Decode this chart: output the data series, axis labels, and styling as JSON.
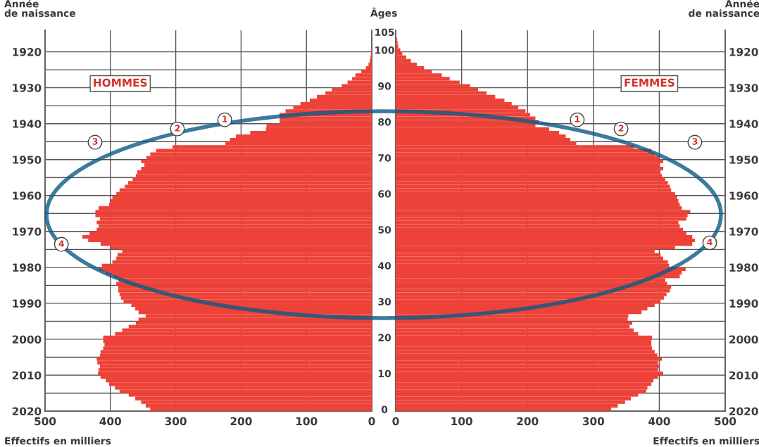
{
  "chart_data": [
    {
      "type": "bar",
      "orientation": "horizontal",
      "title": "HOMMES",
      "xlabel": "Effectifs en milliers",
      "ylabel": "Âges",
      "y2label": "Année\nde naissance",
      "color": "#ee4238",
      "grid": true,
      "x": [
        0,
        1,
        2,
        3,
        4,
        5,
        6,
        7,
        8,
        9,
        10,
        11,
        12,
        13,
        14,
        15,
        16,
        17,
        18,
        19,
        20,
        21,
        22,
        23,
        24,
        25,
        26,
        27,
        28,
        29,
        30,
        31,
        32,
        33,
        34,
        35,
        36,
        37,
        38,
        39,
        40,
        41,
        42,
        43,
        44,
        45,
        46,
        47,
        48,
        49,
        50,
        51,
        52,
        53,
        54,
        55,
        56,
        57,
        58,
        59,
        60,
        61,
        62,
        63,
        64,
        65,
        66,
        67,
        68,
        69,
        70,
        71,
        72,
        73,
        74,
        75,
        76,
        77,
        78,
        79,
        80,
        81,
        82,
        83,
        84,
        85,
        86,
        87,
        88,
        89,
        90,
        91,
        92,
        93,
        94,
        95,
        96,
        97,
        98,
        99,
        100,
        101,
        102,
        103,
        104,
        105
      ],
      "values": [
        339,
        346,
        353,
        362,
        372,
        386,
        393,
        402,
        407,
        415,
        419,
        418,
        416,
        420,
        421,
        416,
        415,
        411,
        409,
        411,
        411,
        393,
        382,
        372,
        361,
        357,
        346,
        357,
        362,
        368,
        380,
        384,
        386,
        388,
        388,
        391,
        387,
        395,
        407,
        418,
        413,
        397,
        391,
        389,
        382,
        400,
        415,
        434,
        443,
        432,
        421,
        418,
        421,
        416,
        423,
        423,
        418,
        402,
        400,
        397,
        391,
        386,
        378,
        373,
        366,
        361,
        359,
        353,
        348,
        353,
        345,
        339,
        330,
        305,
        224,
        217,
        208,
        186,
        162,
        161,
        141,
        141,
        141,
        132,
        120,
        109,
        95,
        84,
        71,
        61,
        46,
        37,
        30,
        25,
        16,
        9,
        5,
        3,
        2,
        1,
        1,
        0,
        0,
        0,
        0,
        0
      ],
      "xlim": [
        500,
        0
      ],
      "xticks": [
        500,
        400,
        300,
        200,
        100,
        0
      ],
      "ylim": [
        -0.5,
        105.5
      ],
      "yticks": [
        0,
        10,
        20,
        30,
        40,
        50,
        60,
        70,
        80,
        90,
        100,
        105
      ],
      "y2lim": [
        2020,
        1914
      ],
      "y2ticks": [
        1920,
        {
          "value": 1925,
          "label": null
        },
        1930,
        {
          "value": 1935,
          "label": null
        },
        1940,
        {
          "value": 1945,
          "label": null
        },
        1950,
        {
          "value": 1955,
          "label": null
        },
        1960,
        {
          "value": 1965,
          "label": null
        },
        1970,
        {
          "value": 1975,
          "label": null
        },
        1980,
        {
          "value": 1985,
          "label": null
        },
        1990,
        {
          "value": 1995,
          "label": null
        },
        2000,
        {
          "value": 2005,
          "label": null
        },
        2010,
        {
          "value": 2015,
          "label": null
        },
        2020
      ],
      "annotations": [
        "1",
        "2",
        "3",
        "4"
      ]
    },
    {
      "type": "bar",
      "orientation": "horizontal",
      "title": "FEMMES",
      "xlabel": "Effectifs en milliers",
      "y2label": "Année\nde naissance",
      "color": "#ee4238",
      "grid": true,
      "x": [
        0,
        1,
        2,
        3,
        4,
        5,
        6,
        7,
        8,
        9,
        10,
        11,
        12,
        13,
        14,
        15,
        16,
        17,
        18,
        19,
        20,
        21,
        22,
        23,
        24,
        25,
        26,
        27,
        28,
        29,
        30,
        31,
        32,
        33,
        34,
        35,
        36,
        37,
        38,
        39,
        40,
        41,
        42,
        43,
        44,
        45,
        46,
        47,
        48,
        49,
        50,
        51,
        52,
        53,
        54,
        55,
        56,
        57,
        58,
        59,
        60,
        61,
        62,
        63,
        64,
        65,
        66,
        67,
        68,
        69,
        70,
        71,
        72,
        73,
        74,
        75,
        76,
        77,
        78,
        79,
        80,
        81,
        82,
        83,
        84,
        85,
        86,
        87,
        88,
        89,
        90,
        91,
        92,
        93,
        94,
        95,
        96,
        97,
        98,
        99,
        100,
        101,
        102,
        103,
        104,
        105
      ],
      "values": [
        327,
        337,
        348,
        357,
        368,
        380,
        382,
        388,
        391,
        398,
        406,
        398,
        400,
        398,
        404,
        397,
        393,
        389,
        388,
        388,
        389,
        368,
        361,
        355,
        359,
        352,
        353,
        373,
        382,
        393,
        402,
        407,
        411,
        416,
        418,
        412,
        409,
        431,
        434,
        440,
        415,
        413,
        406,
        402,
        393,
        424,
        450,
        454,
        450,
        441,
        436,
        431,
        429,
        441,
        443,
        447,
        434,
        431,
        429,
        427,
        424,
        418,
        416,
        413,
        409,
        404,
        402,
        406,
        400,
        406,
        400,
        393,
        388,
        362,
        274,
        265,
        258,
        248,
        233,
        212,
        217,
        212,
        204,
        197,
        186,
        176,
        165,
        151,
        138,
        125,
        113,
        97,
        82,
        70,
        55,
        43,
        32,
        23,
        16,
        10,
        7,
        4,
        3,
        2,
        1,
        0
      ],
      "xlim": [
        0,
        500
      ],
      "xticks": [
        0,
        100,
        200,
        300,
        400,
        500
      ],
      "ylim": [
        -0.5,
        105.5
      ],
      "y2lim": [
        2020,
        1914
      ],
      "y2ticks": [
        1920,
        {
          "value": 1925,
          "label": null
        },
        1930,
        {
          "value": 1935,
          "label": null
        },
        1940,
        {
          "value": 1945,
          "label": null
        },
        1950,
        {
          "value": 1955,
          "label": null
        },
        1960,
        {
          "value": 1965,
          "label": null
        },
        1970,
        {
          "value": 1975,
          "label": null
        },
        1980,
        {
          "value": 1985,
          "label": null
        },
        1990,
        {
          "value": 1995,
          "label": null
        },
        2000,
        {
          "value": 2005,
          "label": null
        },
        2010,
        {
          "value": 2015,
          "label": null
        },
        2020
      ],
      "annotations": [
        "1",
        "2",
        "3",
        "4"
      ]
    }
  ]
}
